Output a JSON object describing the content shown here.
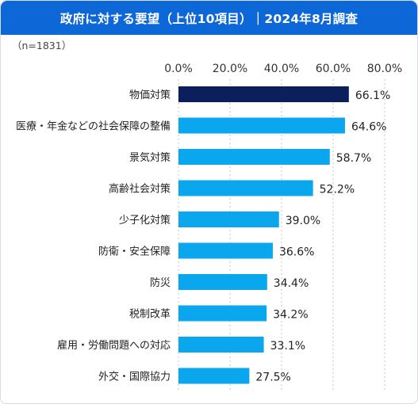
{
  "chart_data": {
    "type": "bar",
    "orientation": "horizontal",
    "title": "政府に対する要望（上位10項目）｜2024年8月調査",
    "subtitle": "（n=1831）",
    "xlim": [
      0,
      80
    ],
    "x_ticks": [
      "0.0%",
      "20.0%",
      "40.0%",
      "60.0%",
      "80.0%"
    ],
    "x_tick_values": [
      0,
      20,
      40,
      60,
      80
    ],
    "grid": "vertical dotted",
    "categories": [
      "物価対策",
      "医療・年金などの社会保障の整備",
      "景気対策",
      "高齢社会対策",
      "少子化対策",
      "防衛・安全保障",
      "防災",
      "税制改革",
      "雇用・労働問題への対応",
      "外交・国際協力"
    ],
    "values": [
      66.1,
      64.6,
      58.7,
      52.2,
      39.0,
      36.6,
      34.4,
      34.2,
      33.1,
      27.5
    ],
    "value_labels": [
      "66.1%",
      "64.6%",
      "58.7%",
      "52.2%",
      "39.0%",
      "36.6%",
      "34.4%",
      "34.2%",
      "33.1%",
      "27.5%"
    ],
    "highlight_index": 0,
    "colors": {
      "highlight": "#0b1f5c",
      "bar": "#0aa6ee",
      "title_bg": "#0d67d6",
      "grid": "#c4c4c4"
    }
  }
}
